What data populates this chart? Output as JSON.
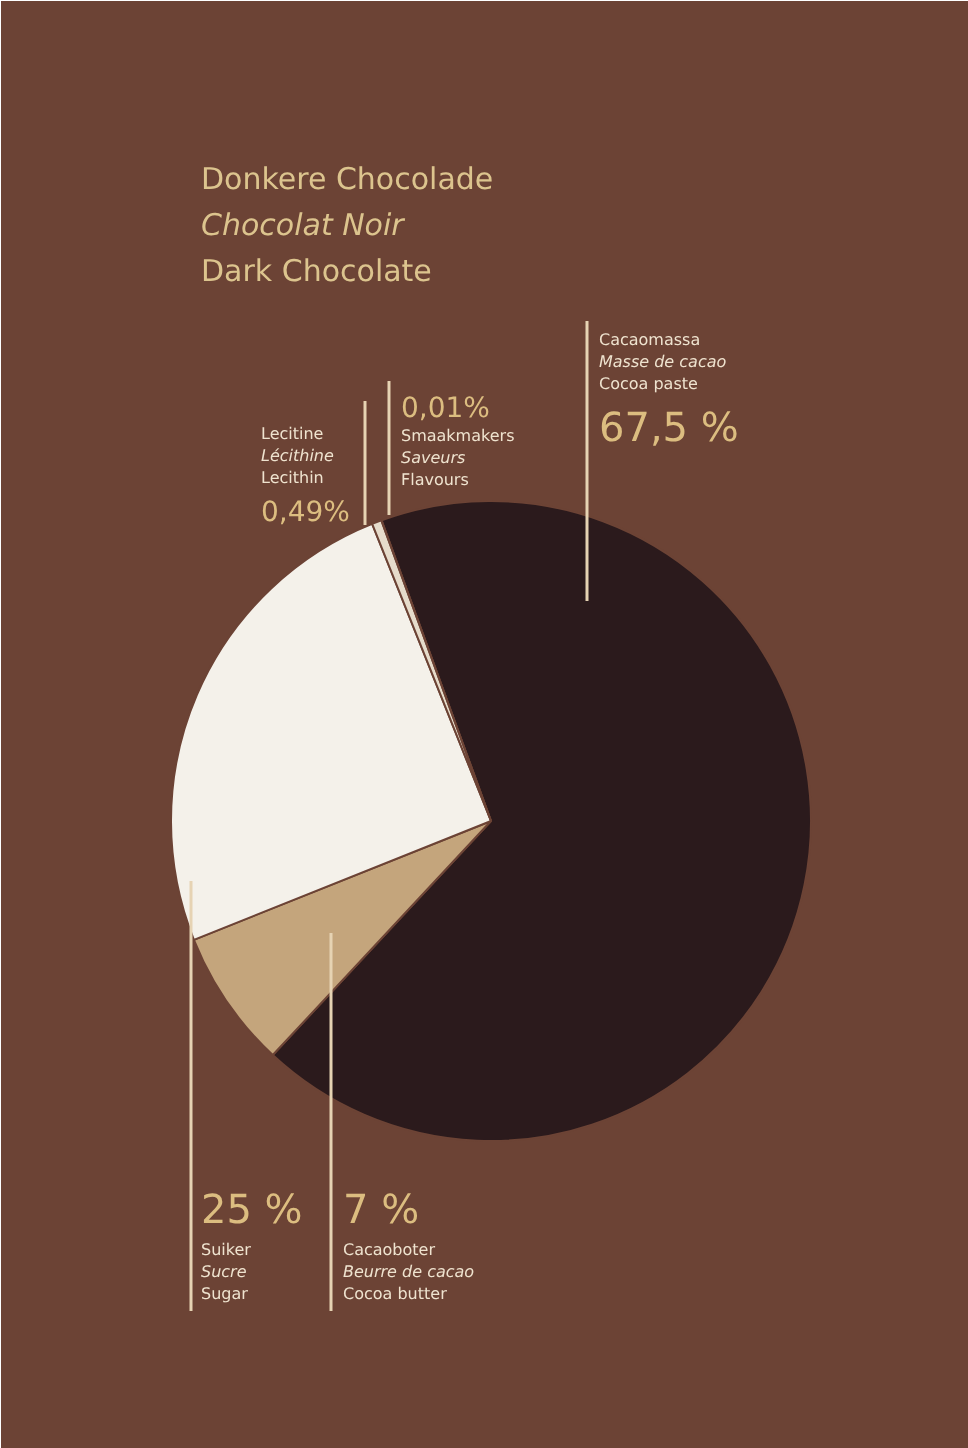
{
  "chart_data": {
    "type": "pie",
    "title": "Donkere Chocolade\nChocolat Noir\nDark Chocolate",
    "categories": [
      "Cacaomassa\nMasse de cacao\nCocoa paste",
      "Cacaoboter\nBeurre de cacao\nCocoa butter",
      "Suiker\nSucre\nSugar",
      "Lecitine\nLécithine\nLecithin",
      "Smaakmakers\nSaveurs\nFlavours"
    ],
    "values": [
      67.5,
      7,
      25,
      0.49,
      0.01
    ],
    "colors": [
      "#2b1a1c",
      "#c4a57c",
      "#f4f1ea",
      "#e6dccb",
      "#b08a6a"
    ],
    "value_labels": [
      "67,5 %",
      "7 %",
      "25 %",
      "0,49%",
      "0,01%"
    ]
  }
}
